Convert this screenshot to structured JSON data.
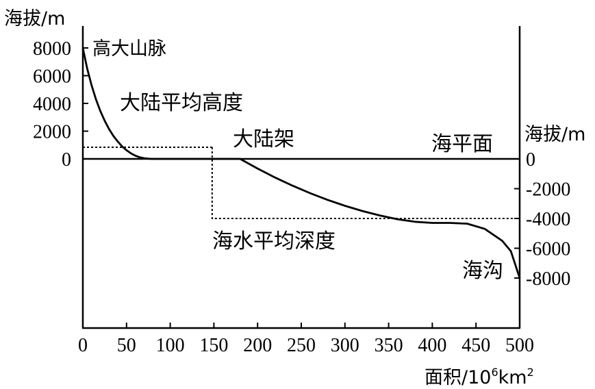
{
  "chart_data": {
    "type": "line",
    "left_axis_title": "海拔/m",
    "right_axis_title": "海拔/m",
    "x_axis_title_base": "面积/10",
    "x_axis_title_sup": "6",
    "x_axis_title_unit": "km",
    "x_axis_title_unit_sup": "2",
    "x_ticks": [
      "0",
      "50",
      "100",
      "150",
      "200",
      "250",
      "300",
      "350",
      "400",
      "450",
      "500"
    ],
    "x_tick_values": [
      0,
      50,
      100,
      150,
      200,
      250,
      300,
      350,
      400,
      450,
      500
    ],
    "xlim": [
      0,
      500
    ],
    "left_y_ticks": [
      "8000",
      "6000",
      "4000",
      "2000",
      "0"
    ],
    "left_y_tick_values": [
      8000,
      6000,
      4000,
      2000,
      0
    ],
    "right_y_ticks": [
      "0",
      "-2000",
      "-4000",
      "-6000",
      "-8000"
    ],
    "right_y_tick_values": [
      0,
      -2000,
      -4000,
      -6000,
      -8000
    ],
    "ylim": [
      -12000,
      8500
    ],
    "annotations": {
      "high_mountains": "高大山脉",
      "mean_land_height": "大陆平均高度",
      "continental_shelf": "大陆架",
      "sea_level": "海平面",
      "mean_ocean_depth": "海水平均深度",
      "trench": "海沟"
    },
    "series": [
      {
        "values_xy": [
          [
            0,
            8000
          ],
          [
            5,
            6500
          ],
          [
            10,
            5300
          ],
          [
            15,
            4300
          ],
          [
            20,
            3450
          ],
          [
            25,
            2750
          ],
          [
            30,
            2150
          ],
          [
            35,
            1650
          ],
          [
            40,
            1250
          ],
          [
            45,
            900
          ],
          [
            50,
            620
          ],
          [
            55,
            400
          ],
          [
            60,
            230
          ],
          [
            65,
            120
          ],
          [
            70,
            50
          ],
          [
            78,
            0
          ],
          [
            180,
            0
          ],
          [
            200,
            -650
          ],
          [
            220,
            -1250
          ],
          [
            240,
            -1800
          ],
          [
            260,
            -2300
          ],
          [
            280,
            -2750
          ],
          [
            300,
            -3150
          ],
          [
            320,
            -3500
          ],
          [
            340,
            -3800
          ],
          [
            360,
            -4050
          ],
          [
            380,
            -4220
          ],
          [
            400,
            -4300
          ],
          [
            420,
            -4300
          ],
          [
            440,
            -4350
          ],
          [
            460,
            -4700
          ],
          [
            480,
            -5500
          ],
          [
            490,
            -6200
          ],
          [
            500,
            -8000
          ]
        ]
      }
    ],
    "reference_lines": {
      "sea_level": 0,
      "mean_land_height": {
        "value": 840,
        "x_range": [
          0,
          148
        ]
      },
      "mean_ocean_depth": {
        "value": -4000,
        "x_range": [
          148,
          500
        ]
      }
    }
  }
}
